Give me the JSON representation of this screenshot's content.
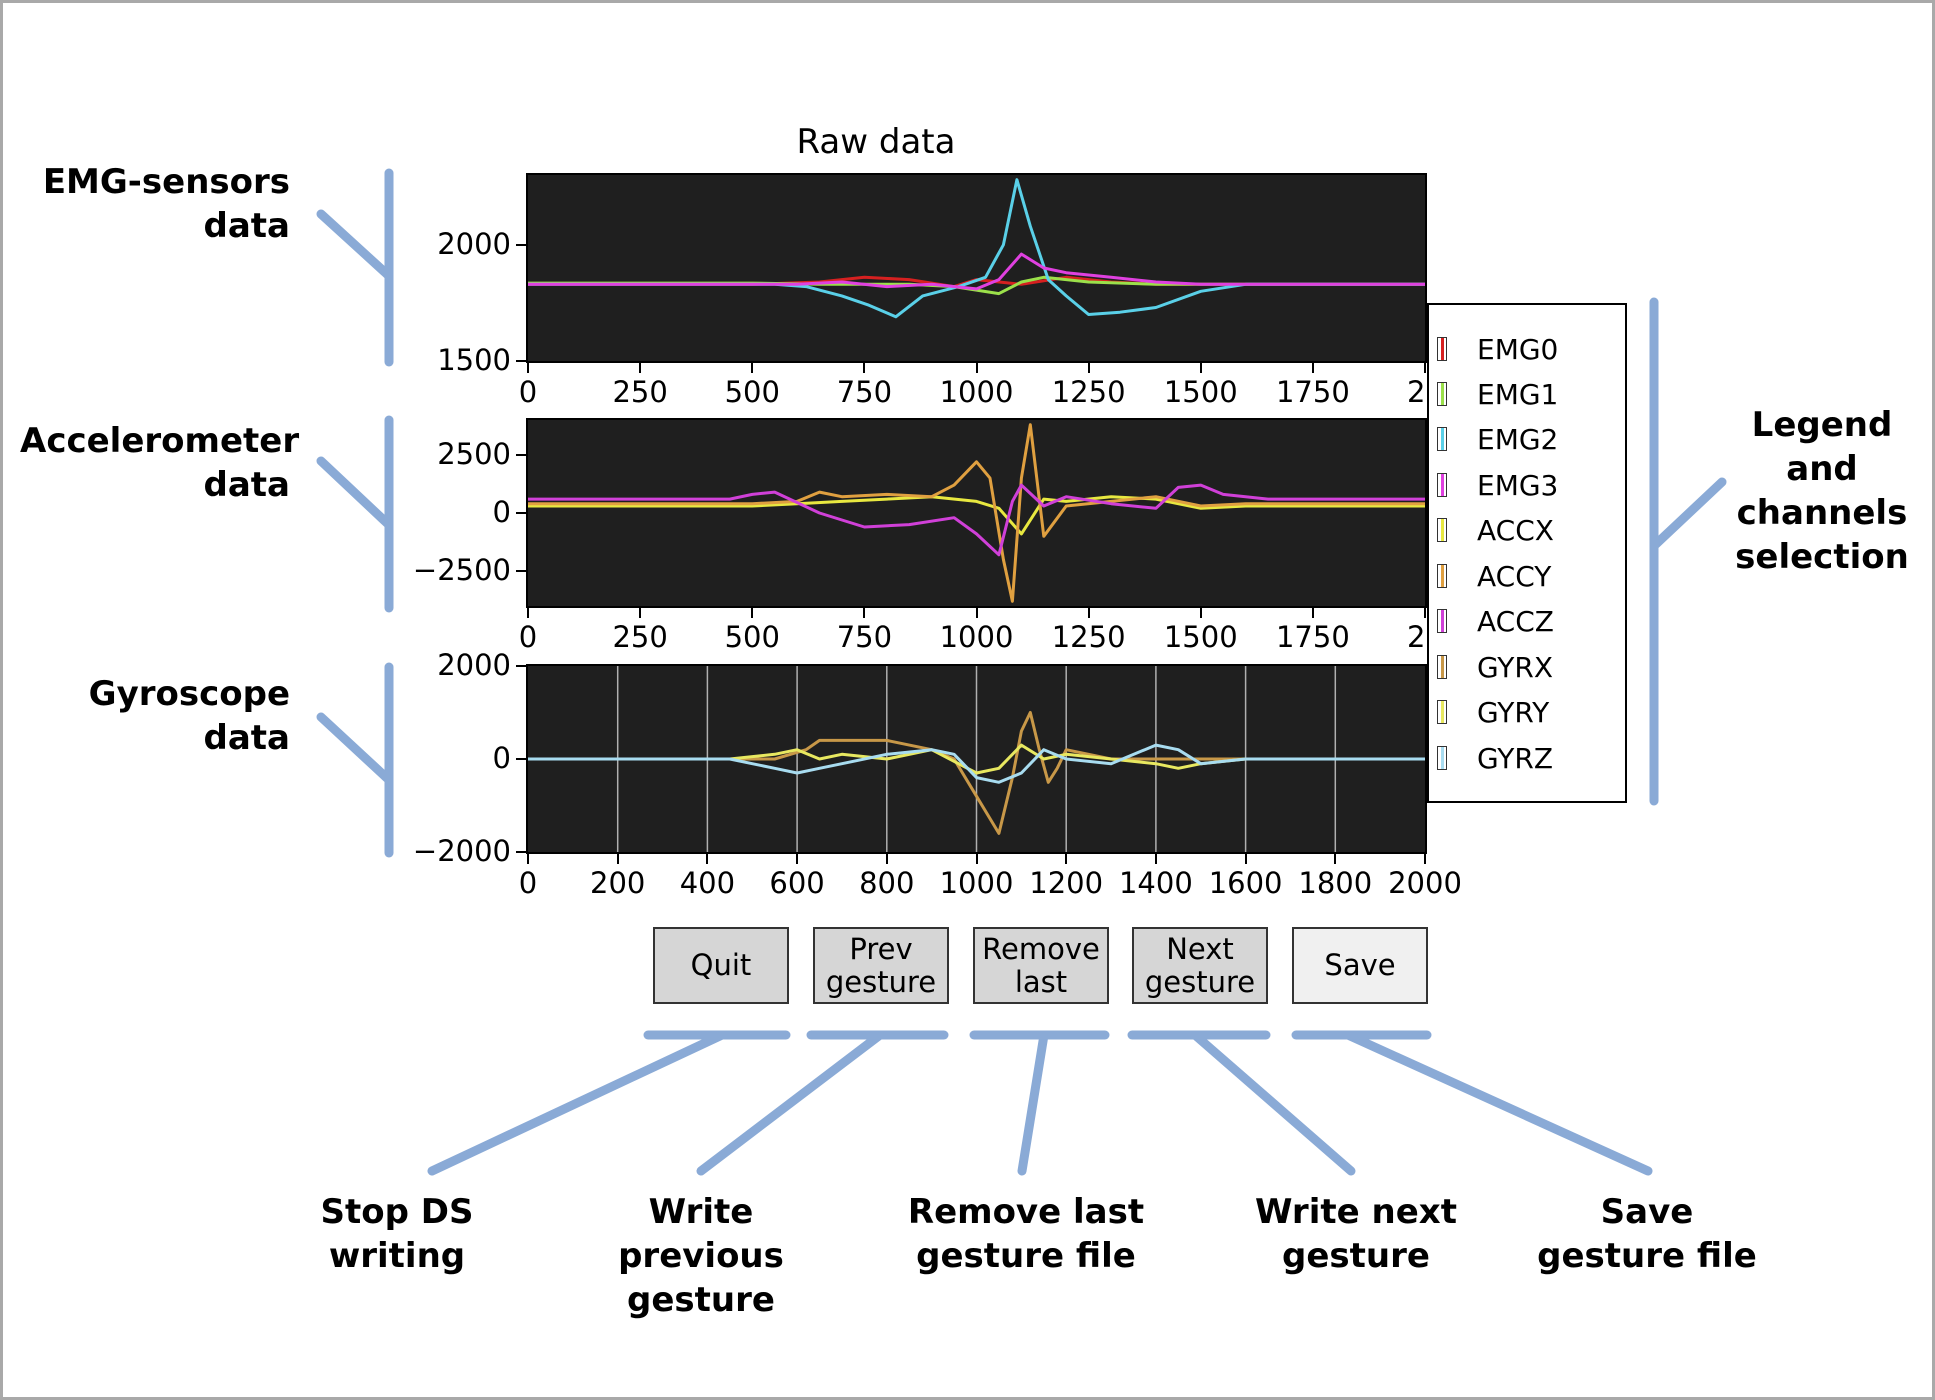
{
  "title": "Raw data",
  "side_labels": {
    "emg": [
      "EMG-sensors",
      "data"
    ],
    "acc": [
      "Accelerometer",
      "data"
    ],
    "gyr": [
      "Gyroscope",
      "data"
    ],
    "legend": [
      "Legend",
      "and",
      "channels",
      "selection"
    ]
  },
  "buttons": {
    "quit": "Quit",
    "prev": "Prev\ngesture",
    "remove": "Remove\nlast",
    "next": "Next\ngesture",
    "save": "Save"
  },
  "bottom_labels": {
    "quit": [
      "Stop DS",
      "writing"
    ],
    "prev": [
      "Write previous",
      "gesture"
    ],
    "remove": [
      "Remove last",
      "gesture file"
    ],
    "next": [
      "Write next",
      "gesture"
    ],
    "save": [
      "Save",
      "gesture file"
    ]
  },
  "legend": {
    "items": [
      "EMG0",
      "EMG1",
      "EMG2",
      "EMG3",
      "ACCX",
      "ACCY",
      "ACCZ",
      "GYRX",
      "GYRY",
      "GYRZ"
    ]
  },
  "colors": {
    "bracket": "#8aaad6",
    "plot_bg": "#1f1f1f",
    "EMG0": "#d62020",
    "EMG1": "#9be04a",
    "EMG2": "#5ad0e8",
    "EMG3": "#e040e0",
    "ACCX": "#e8e840",
    "ACCY": "#e0a040",
    "ACCZ": "#d040d8",
    "GYRX": "#c89848",
    "GYRY": "#e8e860",
    "GYRZ": "#a8dcf0"
  },
  "chart_data": [
    {
      "type": "line",
      "xlim": [
        0,
        2000
      ],
      "ylim": [
        1500,
        2300
      ],
      "xticks": [
        "0",
        "250",
        "500",
        "750",
        "1000",
        "1250",
        "1500",
        "1750",
        "20"
      ],
      "xtick_values": [
        0,
        250,
        500,
        750,
        1000,
        1250,
        1500,
        1750,
        2000
      ],
      "yticks": [
        "1500",
        "2000"
      ],
      "ytick_values": [
        1500,
        2000
      ],
      "grid": false,
      "series": [
        {
          "name": "EMG0",
          "x": [
            0,
            500,
            650,
            750,
            850,
            950,
            1000,
            1100,
            1200,
            1300,
            1400,
            2000
          ],
          "y": [
            1830,
            1830,
            1840,
            1860,
            1850,
            1820,
            1850,
            1830,
            1860,
            1840,
            1830,
            1830
          ]
        },
        {
          "name": "EMG1",
          "x": [
            0,
            500,
            650,
            750,
            850,
            950,
            1050,
            1100,
            1150,
            1250,
            1400,
            2000
          ],
          "y": [
            1835,
            1835,
            1830,
            1830,
            1830,
            1820,
            1790,
            1840,
            1860,
            1840,
            1830,
            1830
          ]
        },
        {
          "name": "EMG2",
          "x": [
            0,
            550,
            620,
            700,
            760,
            820,
            880,
            960,
            1020,
            1060,
            1090,
            1120,
            1160,
            1200,
            1250,
            1320,
            1400,
            1500,
            1600,
            2000
          ],
          "y": [
            1830,
            1830,
            1820,
            1780,
            1740,
            1690,
            1780,
            1820,
            1860,
            2000,
            2280,
            2080,
            1850,
            1780,
            1700,
            1710,
            1730,
            1800,
            1830,
            1830
          ]
        },
        {
          "name": "EMG3",
          "x": [
            0,
            600,
            700,
            800,
            900,
            1000,
            1050,
            1100,
            1150,
            1200,
            1300,
            1400,
            1500,
            1600,
            2000
          ],
          "y": [
            1830,
            1830,
            1840,
            1820,
            1830,
            1810,
            1850,
            1960,
            1900,
            1880,
            1860,
            1840,
            1830,
            1830,
            1830
          ]
        }
      ]
    },
    {
      "type": "line",
      "xlim": [
        0,
        2000
      ],
      "ylim": [
        -4000,
        4000
      ],
      "xticks": [
        "0",
        "250",
        "500",
        "750",
        "1000",
        "1250",
        "1500",
        "1750",
        "20"
      ],
      "xtick_values": [
        0,
        250,
        500,
        750,
        1000,
        1250,
        1500,
        1750,
        2000
      ],
      "yticks": [
        "−2500",
        "0",
        "2500"
      ],
      "ytick_values": [
        -2500,
        0,
        2500
      ],
      "grid": false,
      "series": [
        {
          "name": "ACCX",
          "x": [
            0,
            500,
            600,
            700,
            800,
            900,
            1000,
            1050,
            1100,
            1150,
            1200,
            1300,
            1400,
            1500,
            1600,
            2000
          ],
          "y": [
            300,
            300,
            400,
            500,
            600,
            700,
            500,
            200,
            -900,
            600,
            500,
            700,
            600,
            200,
            300,
            300
          ]
        },
        {
          "name": "ACCY",
          "x": [
            0,
            500,
            600,
            650,
            700,
            800,
            900,
            950,
            1000,
            1030,
            1060,
            1080,
            1100,
            1120,
            1150,
            1200,
            1300,
            1400,
            1500,
            1600,
            2000
          ],
          "y": [
            400,
            400,
            500,
            900,
            700,
            800,
            700,
            1200,
            2200,
            1500,
            -2000,
            -3800,
            1500,
            3800,
            -1000,
            300,
            500,
            700,
            300,
            400,
            400
          ]
        },
        {
          "name": "ACCZ",
          "x": [
            0,
            450,
            500,
            550,
            650,
            750,
            850,
            950,
            1000,
            1050,
            1080,
            1100,
            1150,
            1200,
            1300,
            1400,
            1450,
            1500,
            1550,
            1650,
            2000
          ],
          "y": [
            600,
            600,
            800,
            900,
            0,
            -600,
            -500,
            -200,
            -900,
            -1800,
            500,
            1200,
            300,
            700,
            400,
            200,
            1100,
            1200,
            800,
            600,
            600
          ]
        }
      ]
    },
    {
      "type": "line",
      "xlim": [
        0,
        2000
      ],
      "ylim": [
        -2000,
        2000
      ],
      "xticks": [
        "0",
        "200",
        "400",
        "600",
        "800",
        "1000",
        "1200",
        "1400",
        "1600",
        "1800",
        "2000"
      ],
      "xtick_values": [
        0,
        200,
        400,
        600,
        800,
        1000,
        1200,
        1400,
        1600,
        1800,
        2000
      ],
      "yticks": [
        "−2000",
        "0",
        "2000"
      ],
      "ytick_values": [
        -2000,
        0,
        2000
      ],
      "grid": true,
      "series": [
        {
          "name": "GYRX",
          "x": [
            0,
            550,
            620,
            650,
            700,
            800,
            900,
            950,
            1000,
            1050,
            1080,
            1100,
            1120,
            1140,
            1160,
            1180,
            1200,
            1300,
            1400,
            1500,
            2000
          ],
          "y": [
            0,
            0,
            200,
            400,
            400,
            400,
            200,
            0,
            -800,
            -1600,
            -400,
            600,
            1000,
            200,
            -500,
            -200,
            200,
            0,
            0,
            0,
            0
          ]
        },
        {
          "name": "GYRY",
          "x": [
            0,
            450,
            550,
            600,
            650,
            700,
            800,
            900,
            1000,
            1050,
            1100,
            1150,
            1200,
            1300,
            1400,
            1450,
            1500,
            1600,
            2000
          ],
          "y": [
            0,
            0,
            100,
            200,
            0,
            100,
            0,
            200,
            -300,
            -200,
            300,
            0,
            100,
            0,
            -100,
            -200,
            -100,
            0,
            0
          ]
        },
        {
          "name": "GYRZ",
          "x": [
            0,
            450,
            500,
            550,
            600,
            650,
            700,
            800,
            900,
            950,
            1000,
            1050,
            1100,
            1150,
            1200,
            1300,
            1400,
            1450,
            1500,
            1600,
            2000
          ],
          "y": [
            0,
            0,
            -100,
            -200,
            -300,
            -200,
            -100,
            100,
            200,
            100,
            -400,
            -500,
            -300,
            200,
            0,
            -100,
            300,
            200,
            -100,
            0,
            0
          ]
        }
      ]
    }
  ]
}
